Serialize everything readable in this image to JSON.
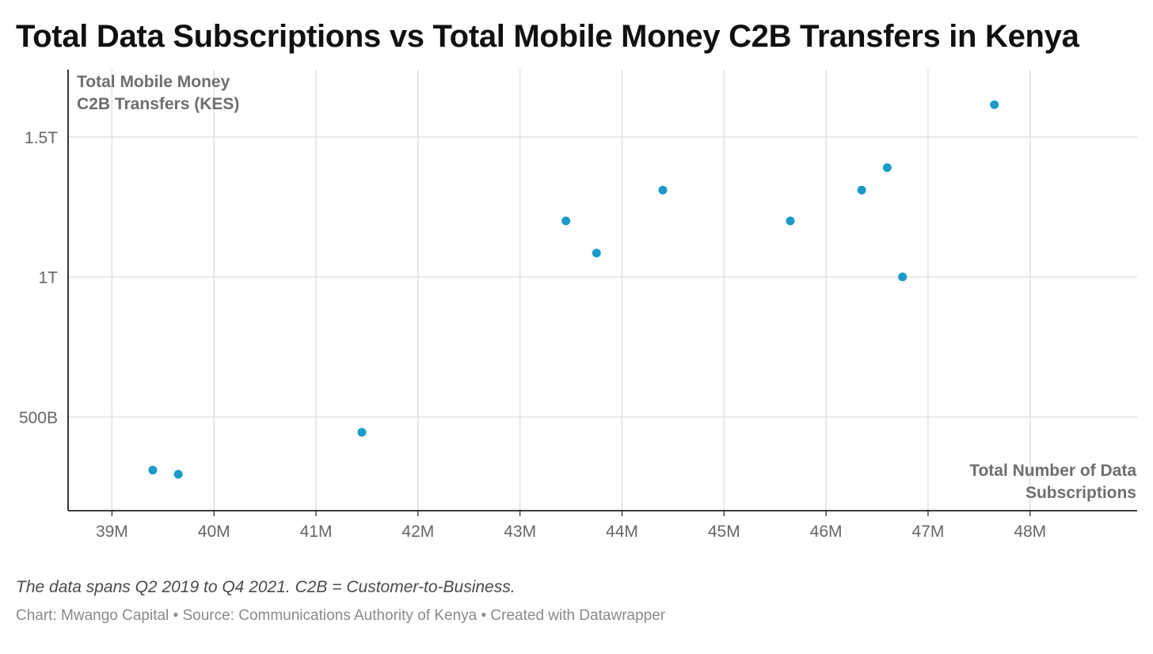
{
  "chart_data": {
    "type": "scatter",
    "title": "Total Data Subscriptions vs Total Mobile Money C2B Transfers in Kenya",
    "xlabel": [
      "Total Number of Data",
      "Subscriptions"
    ],
    "ylabel": [
      "Total Mobile Money",
      "C2B Transfers (KES)"
    ],
    "x_ticks": [
      {
        "value": 39,
        "label": "39M"
      },
      {
        "value": 40,
        "label": "40M"
      },
      {
        "value": 41,
        "label": "41M"
      },
      {
        "value": 42,
        "label": "42M"
      },
      {
        "value": 43,
        "label": "43M"
      },
      {
        "value": 44,
        "label": "44M"
      },
      {
        "value": 45,
        "label": "45M"
      },
      {
        "value": 46,
        "label": "46M"
      },
      {
        "value": 47,
        "label": "47M"
      },
      {
        "value": 48,
        "label": "48M"
      }
    ],
    "y_ticks": [
      {
        "value": 500,
        "label": "500B"
      },
      {
        "value": 1000,
        "label": "1T"
      },
      {
        "value": 1500,
        "label": "1.5T"
      }
    ],
    "x_unit": "millions",
    "y_unit": "billions KES",
    "xlim": [
      38.57,
      49.05
    ],
    "ylim": [
      165,
      1740
    ],
    "grid": true,
    "point_color": "#1a9bc9",
    "points": [
      {
        "x": 39.4,
        "y": 310
      },
      {
        "x": 39.65,
        "y": 295
      },
      {
        "x": 41.45,
        "y": 445
      },
      {
        "x": 43.45,
        "y": 1200
      },
      {
        "x": 43.75,
        "y": 1085
      },
      {
        "x": 44.4,
        "y": 1310
      },
      {
        "x": 45.65,
        "y": 1200
      },
      {
        "x": 46.35,
        "y": 1310
      },
      {
        "x": 46.6,
        "y": 1390
      },
      {
        "x": 46.75,
        "y": 1000
      },
      {
        "x": 47.65,
        "y": 1615
      }
    ]
  },
  "notes": "The data spans Q2 2019 to Q4 2021. C2B = Customer-to-Business.",
  "footer": "Chart: Mwango Capital • Source: Communications Authority of Kenya • Created with Datawrapper"
}
